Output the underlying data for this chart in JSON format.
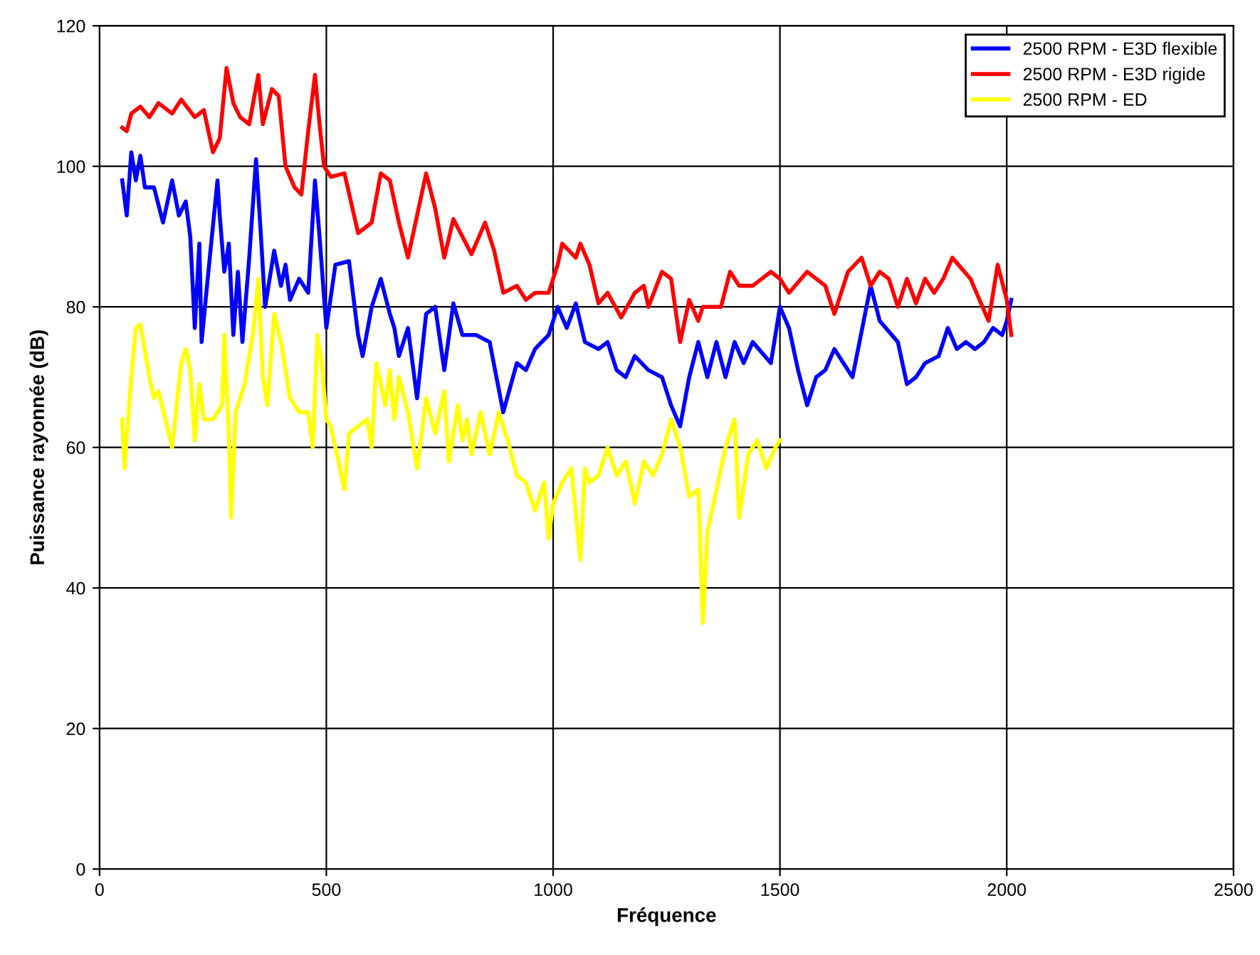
{
  "chart_data": {
    "type": "line",
    "xlabel": "Fréquence",
    "ylabel": "Puissance rayonnée (dB)",
    "xlim": [
      0,
      2500
    ],
    "xticks": [
      0,
      500,
      1000,
      1500,
      2000,
      2500
    ],
    "ylim": [
      0,
      120
    ],
    "yticks": [
      0,
      20,
      40,
      60,
      80,
      100,
      120
    ],
    "grid": true,
    "legend": "top right",
    "marker": "none",
    "line_style": "solid",
    "series": [
      {
        "name": "2500 RPM - E3D flexible",
        "color": "#0000ff",
        "x": [
          50,
          60,
          70,
          80,
          90,
          100,
          120,
          140,
          160,
          175,
          190,
          200,
          210,
          220,
          225,
          240,
          260,
          265,
          275,
          285,
          295,
          305,
          315,
          330,
          345,
          355,
          365,
          385,
          400,
          410,
          420,
          440,
          460,
          475,
          485,
          500,
          520,
          550,
          570,
          580,
          600,
          620,
          640,
          650,
          660,
          680,
          700,
          720,
          740,
          760,
          780,
          800,
          830,
          860,
          890,
          920,
          940,
          960,
          990,
          1010,
          1030,
          1050,
          1070,
          1100,
          1120,
          1140,
          1160,
          1180,
          1210,
          1240,
          1260,
          1280,
          1300,
          1320,
          1340,
          1360,
          1380,
          1400,
          1420,
          1440,
          1480,
          1500,
          1520,
          1540,
          1560,
          1580,
          1600,
          1620,
          1640,
          1660,
          1700,
          1720,
          1760,
          1780,
          1800,
          1820,
          1850,
          1870,
          1890,
          1910,
          1930,
          1950,
          1970,
          1990,
          2000,
          2010
        ],
        "values": [
          98,
          93,
          102,
          98,
          101.5,
          97,
          97,
          92,
          98,
          93,
          95,
          90,
          77,
          89,
          75,
          85,
          98,
          93,
          85,
          89,
          76,
          85,
          75,
          87,
          101,
          91,
          80,
          88,
          83,
          86,
          81,
          84,
          82,
          98,
          90,
          77,
          86,
          86.5,
          76,
          73,
          80,
          84,
          79,
          77,
          73,
          77,
          67,
          79,
          80,
          71,
          80.5,
          76,
          76,
          75,
          65,
          72,
          71,
          74,
          76,
          80,
          77,
          80.5,
          75,
          74,
          75,
          71,
          70,
          73,
          71,
          70,
          66,
          63,
          70,
          75,
          70,
          75,
          70,
          75,
          72,
          75,
          72,
          80,
          77,
          71,
          66,
          70,
          71,
          74,
          72,
          70,
          83,
          78,
          75,
          69,
          70,
          72,
          73,
          77,
          74,
          75,
          74,
          75,
          77,
          76,
          78,
          81
        ]
      },
      {
        "name": "2500 RPM - E3D rigide",
        "color": "#ff0000",
        "x": [
          50,
          60,
          70,
          90,
          110,
          130,
          160,
          180,
          210,
          230,
          250,
          265,
          280,
          295,
          310,
          330,
          350,
          360,
          380,
          395,
          410,
          430,
          445,
          460,
          475,
          485,
          495,
          510,
          540,
          570,
          600,
          620,
          640,
          660,
          680,
          700,
          720,
          740,
          760,
          780,
          800,
          820,
          850,
          870,
          890,
          920,
          940,
          960,
          990,
          1010,
          1020,
          1050,
          1060,
          1080,
          1100,
          1120,
          1150,
          1180,
          1200,
          1210,
          1240,
          1260,
          1280,
          1300,
          1320,
          1330,
          1370,
          1390,
          1410,
          1440,
          1480,
          1500,
          1520,
          1560,
          1600,
          1620,
          1650,
          1680,
          1700,
          1720,
          1740,
          1760,
          1780,
          1800,
          1820,
          1840,
          1860,
          1880,
          1920,
          1960,
          1980,
          2000,
          2010
        ],
        "values": [
          105.5,
          105,
          107.5,
          108.5,
          107,
          109,
          107.5,
          109.5,
          107,
          108,
          102,
          104,
          114,
          109,
          107,
          106,
          113,
          106,
          111,
          110,
          100,
          97,
          96,
          105,
          113,
          106,
          100,
          98.5,
          99,
          90.5,
          92,
          99,
          98,
          92,
          87,
          93,
          99,
          94,
          87,
          92.5,
          90,
          87.5,
          92,
          88,
          82,
          83,
          81,
          82,
          82,
          86,
          89,
          87,
          89,
          86,
          80.5,
          82,
          78.5,
          82,
          83,
          80,
          85,
          84,
          75,
          81,
          78,
          80,
          80,
          85,
          83,
          83,
          85,
          84,
          82,
          85,
          83,
          79,
          85,
          87,
          83,
          85,
          84,
          80,
          84,
          80.5,
          84,
          82,
          84,
          87,
          84,
          78,
          86,
          81,
          76
        ]
      },
      {
        "name": "2500 RPM - ED",
        "color": "#ffff00",
        "x": [
          50,
          55,
          70,
          80,
          90,
          110,
          120,
          130,
          160,
          180,
          190,
          200,
          210,
          220,
          230,
          250,
          270,
          275,
          285,
          290,
          300,
          320,
          340,
          350,
          360,
          370,
          385,
          400,
          420,
          440,
          460,
          470,
          480,
          490,
          500,
          510,
          520,
          540,
          550,
          570,
          590,
          600,
          610,
          630,
          640,
          650,
          660,
          680,
          700,
          720,
          740,
          760,
          770,
          790,
          800,
          810,
          820,
          840,
          860,
          880,
          900,
          920,
          940,
          960,
          980,
          990,
          1000,
          1020,
          1040,
          1060,
          1070,
          1080,
          1100,
          1120,
          1140,
          1160,
          1180,
          1200,
          1220,
          1240,
          1260,
          1280,
          1300,
          1320,
          1330,
          1340,
          1360,
          1380,
          1400,
          1410,
          1430,
          1450,
          1470,
          1490,
          1500
        ],
        "values": [
          64,
          57,
          70,
          77,
          77.5,
          70,
          67,
          68,
          60,
          72,
          74,
          71,
          61,
          69,
          64,
          64,
          66,
          76,
          62,
          50,
          65,
          69,
          77,
          84,
          70,
          66,
          79,
          75,
          67,
          65,
          65,
          60,
          76,
          72,
          64,
          63,
          60,
          54,
          62,
          63,
          64,
          60,
          72,
          66,
          71,
          64,
          70,
          65,
          57,
          67,
          62,
          68,
          58,
          66,
          61,
          64,
          59,
          65,
          59,
          65,
          61,
          56,
          55,
          51,
          55,
          47,
          52,
          55,
          57,
          44,
          57,
          55,
          56,
          60,
          56,
          58,
          52,
          58,
          56,
          59,
          64,
          60,
          53,
          54,
          35,
          48,
          54,
          60,
          64,
          50,
          59,
          61,
          57,
          60,
          61
        ]
      }
    ]
  }
}
